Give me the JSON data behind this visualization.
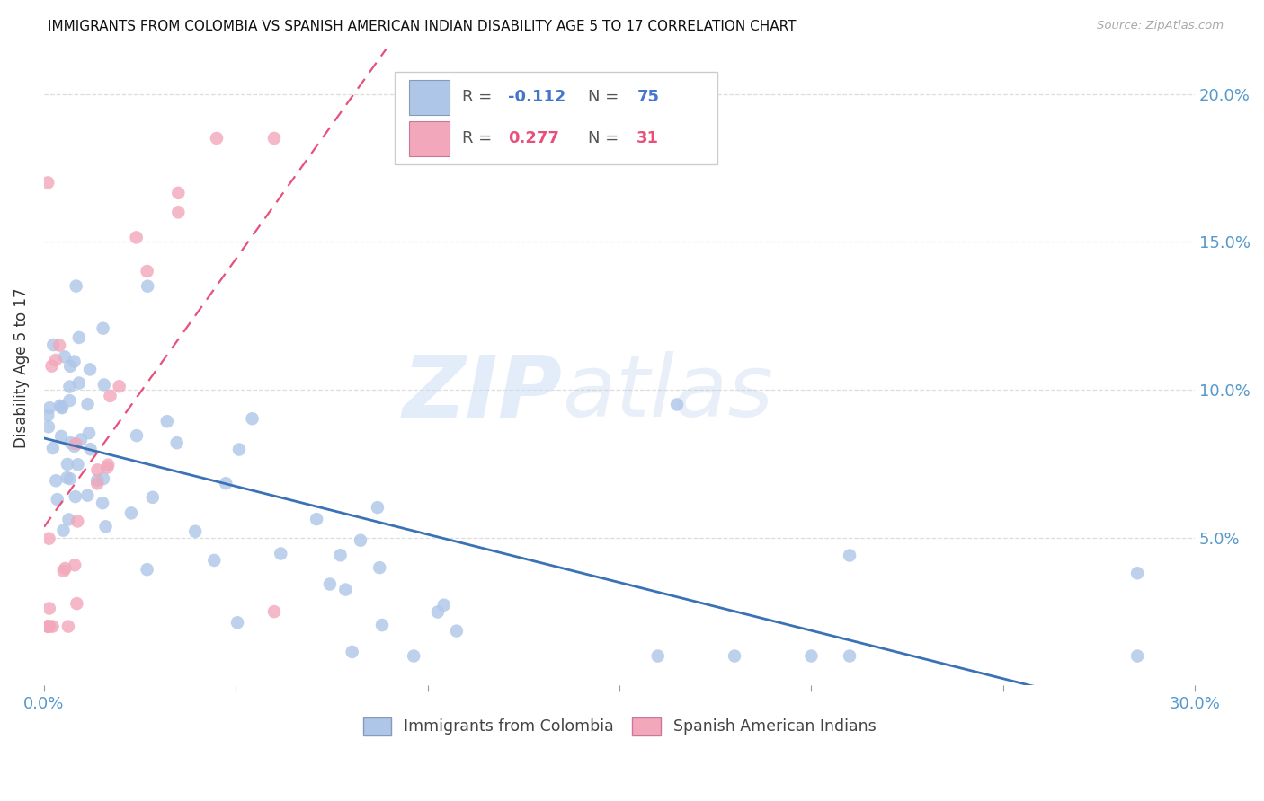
{
  "title": "IMMIGRANTS FROM COLOMBIA VS SPANISH AMERICAN INDIAN DISABILITY AGE 5 TO 17 CORRELATION CHART",
  "source": "Source: ZipAtlas.com",
  "ylabel": "Disability Age 5 to 17",
  "yaxis_labels": [
    "20.0%",
    "15.0%",
    "10.0%",
    "5.0%"
  ],
  "yaxis_values": [
    0.2,
    0.15,
    0.1,
    0.05
  ],
  "xlim": [
    0.0,
    0.3
  ],
  "ylim": [
    0.0,
    0.215
  ],
  "legend_label1": "Immigrants from Colombia",
  "legend_label2": "Spanish American Indians",
  "blue_color": "#aec6e8",
  "pink_color": "#f2a7bb",
  "blue_line_color": "#3a72b5",
  "pink_line_color": "#e8507a",
  "grid_color": "#dddddd",
  "tick_color": "#999999",
  "label_color": "#5599cc",
  "text_color": "#333333"
}
